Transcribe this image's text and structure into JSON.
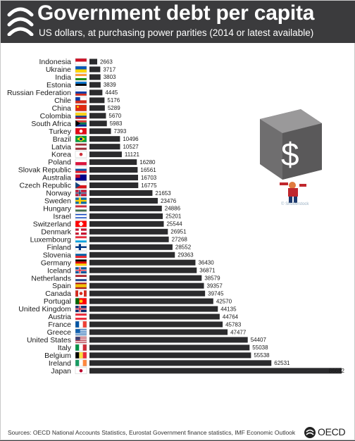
{
  "header": {
    "title": "Government debt per capita",
    "subtitle": "US dollars, at purchasing power parities (2014 or latest available)"
  },
  "illustration": {
    "icon": "debt-burden-illustration",
    "symbol": "$",
    "credit": "© Shutterstock"
  },
  "footer": {
    "sources": "Sources: OECD National Accounts Statistics, Eurostat Government finance statistics, IMF Economic Outlook",
    "logo_text": "OECD"
  },
  "colors": {
    "header_bg": "#3b3b3d",
    "bar": "#2b2b2d",
    "background": "#ffffff"
  },
  "chart_data": {
    "type": "bar",
    "orientation": "horizontal",
    "title": "Government debt per capita",
    "subtitle": "US dollars, at purchasing power parities (2014 or latest available)",
    "categories": [
      "Indonesia",
      "Ukraine",
      "India",
      "Estonia",
      "Russian Federation",
      "Chile",
      "China",
      "Colombia",
      "South Africa",
      "Turkey",
      "Brazil",
      "Latvia",
      "Korea",
      "Poland",
      "Slovak Republic",
      "Australia",
      "Czech Republic",
      "Norway",
      "Sweden",
      "Hungary",
      "Israel",
      "Switzerland",
      "Denmark",
      "Luxembourg",
      "Finland",
      "Slovenia",
      "Germany",
      "Iceland",
      "Netherlands",
      "Spain",
      "Canada",
      "Portugal",
      "United Kingdom",
      "Austria",
      "France",
      "Greece",
      "United States",
      "Italy",
      "Belgium",
      "Ireland",
      "Japan"
    ],
    "values": [
      2663,
      3717,
      3803,
      3839,
      4445,
      5176,
      5289,
      5670,
      5983,
      7393,
      10496,
      10527,
      11121,
      16280,
      16561,
      16703,
      16775,
      21653,
      23476,
      24886,
      25201,
      25544,
      26951,
      27268,
      28552,
      29363,
      36430,
      36871,
      38579,
      39357,
      39745,
      42570,
      44135,
      44764,
      45783,
      47477,
      54407,
      55038,
      55538,
      62531,
      86682
    ],
    "data_labels": [
      "2663",
      "3717",
      "3803",
      "3839",
      "4445",
      "5176",
      "5289",
      "5670",
      "5983",
      "7393",
      "10496",
      "10527",
      "11121",
      "16280",
      "16561",
      "16703",
      "16775",
      "21653",
      "23476",
      "24886",
      "25201",
      "25544",
      "26951",
      "27268",
      "28552",
      "29363",
      "36430",
      "36871",
      "38579",
      "39357",
      "39745",
      "42570",
      "44135",
      "44764",
      "45783",
      "47477",
      "54407",
      "55038",
      "55538",
      "62531",
      "86682"
    ],
    "flags": [
      "indonesia-flag",
      "ukraine-flag",
      "india-flag",
      "estonia-flag",
      "russia-flag",
      "chile-flag",
      "china-flag",
      "colombia-flag",
      "south-africa-flag",
      "turkey-flag",
      "brazil-flag",
      "latvia-flag",
      "korea-flag",
      "poland-flag",
      "slovakia-flag",
      "australia-flag",
      "czech-flag",
      "norway-flag",
      "sweden-flag",
      "hungary-flag",
      "israel-flag",
      "switzerland-flag",
      "denmark-flag",
      "luxembourg-flag",
      "finland-flag",
      "slovenia-flag",
      "germany-flag",
      "iceland-flag",
      "netherlands-flag",
      "spain-flag",
      "canada-flag",
      "portugal-flag",
      "uk-flag",
      "austria-flag",
      "france-flag",
      "greece-flag",
      "usa-flag",
      "italy-flag",
      "belgium-flag",
      "ireland-flag",
      "japan-flag"
    ],
    "xlim": [
      0,
      86682
    ],
    "grid": false,
    "legend": "none"
  }
}
